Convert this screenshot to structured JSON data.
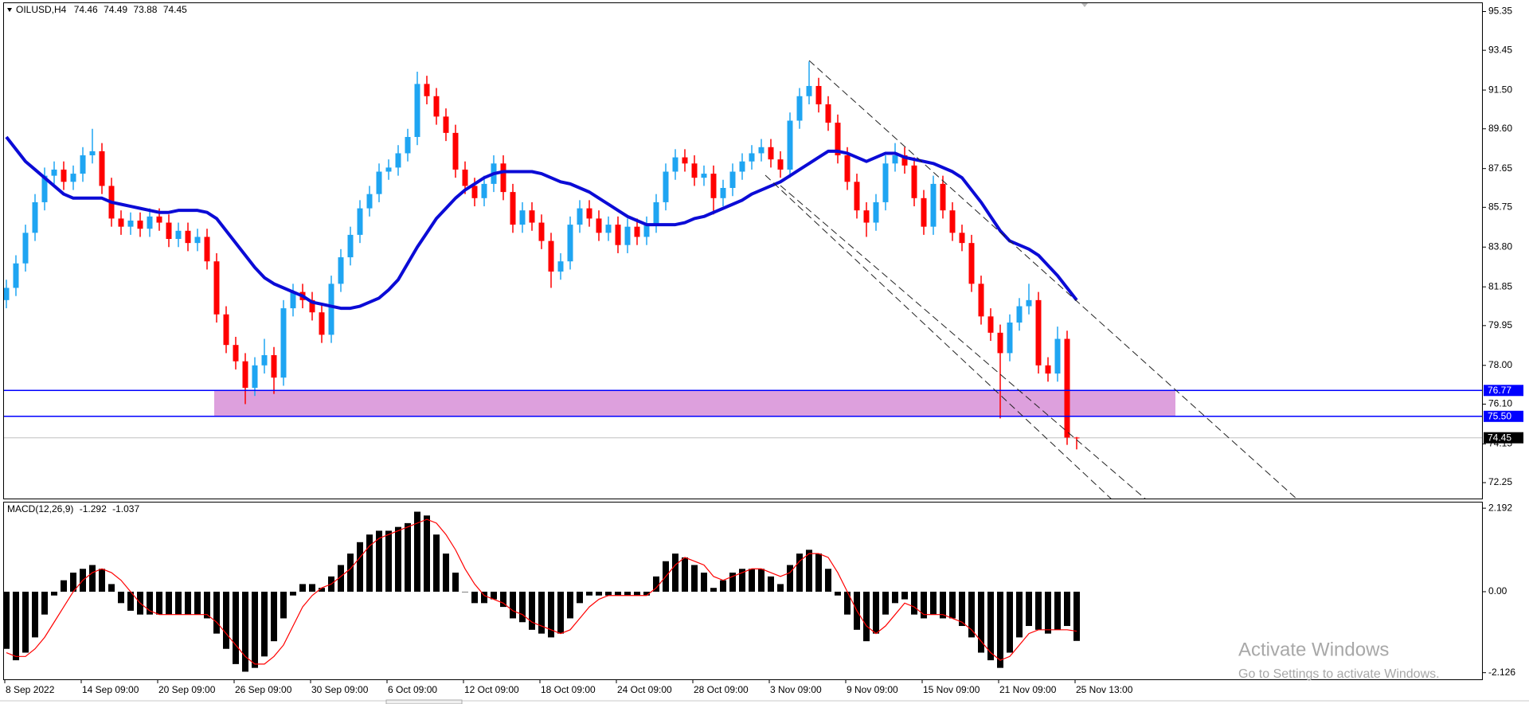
{
  "chart_data": [
    {
      "type": "candlestick",
      "title": "OILUSD,H4",
      "categories": [
        "8 Sep 2022",
        null,
        null,
        null,
        null,
        null,
        null,
        null,
        "14 Sep 09:00",
        null,
        null,
        null,
        null,
        null,
        null,
        null,
        "20 Sep 09:00",
        null,
        null,
        null,
        null,
        null,
        null,
        null,
        "26 Sep 09:00",
        null,
        null,
        null,
        null,
        null,
        null,
        null,
        "30 Sep 09:00",
        null,
        null,
        null,
        null,
        null,
        null,
        null,
        "6 Oct 09:00",
        null,
        null,
        null,
        null,
        null,
        null,
        null,
        "12 Oct 09:00",
        null,
        null,
        null,
        null,
        null,
        null,
        null,
        "18 Oct 09:00",
        null,
        null,
        null,
        null,
        null,
        null,
        null,
        "24 Oct 09:00",
        null,
        null,
        null,
        null,
        null,
        null,
        null,
        "28 Oct 09:00",
        null,
        null,
        null,
        null,
        null,
        null,
        null,
        "3 Nov 09:00",
        null,
        null,
        null,
        null,
        null,
        null,
        null,
        "9 Nov 09:00",
        null,
        null,
        null,
        null,
        null,
        null,
        null,
        "15 Nov 09:00",
        null,
        null,
        null,
        null,
        null,
        null,
        null,
        "21 Nov 09:00",
        null,
        null,
        null,
        null,
        null,
        null,
        null,
        "25 Nov 13:00"
      ],
      "ohlc": [
        [
          81.2,
          82.2,
          80.8,
          81.8
        ],
        [
          81.8,
          83.4,
          81.4,
          83.0
        ],
        [
          83.0,
          84.9,
          82.6,
          84.5
        ],
        [
          84.5,
          86.4,
          84.1,
          86.0
        ],
        [
          86.0,
          87.7,
          85.6,
          87.3
        ],
        [
          87.3,
          88.0,
          86.9,
          87.6
        ],
        [
          87.6,
          88.0,
          86.6,
          87.0
        ],
        [
          87.0,
          87.8,
          86.6,
          87.4
        ],
        [
          87.4,
          88.7,
          87.0,
          88.3
        ],
        [
          88.3,
          89.6,
          87.9,
          88.5
        ],
        [
          88.5,
          88.9,
          86.4,
          86.8
        ],
        [
          86.8,
          87.2,
          84.8,
          85.2
        ],
        [
          85.2,
          85.6,
          84.4,
          84.8
        ],
        [
          84.8,
          85.5,
          84.4,
          85.1
        ],
        [
          85.1,
          85.5,
          84.3,
          84.7
        ],
        [
          84.7,
          85.7,
          84.3,
          85.3
        ],
        [
          85.3,
          85.7,
          84.6,
          85.0
        ],
        [
          85.0,
          85.4,
          83.8,
          84.2
        ],
        [
          84.2,
          85.0,
          83.8,
          84.6
        ],
        [
          84.6,
          85.0,
          83.6,
          84.0
        ],
        [
          84.0,
          84.7,
          83.6,
          84.3
        ],
        [
          84.3,
          84.7,
          82.7,
          83.1
        ],
        [
          83.1,
          83.5,
          80.1,
          80.5
        ],
        [
          80.5,
          80.9,
          78.6,
          79.0
        ],
        [
          79.0,
          79.4,
          77.8,
          78.2
        ],
        [
          78.2,
          78.6,
          76.1,
          76.9
        ],
        [
          76.9,
          78.4,
          76.5,
          78.0
        ],
        [
          78.0,
          79.3,
          77.6,
          78.5
        ],
        [
          78.5,
          78.9,
          76.6,
          77.4
        ],
        [
          77.4,
          81.2,
          77.0,
          80.8
        ],
        [
          80.8,
          82.0,
          80.4,
          81.6
        ],
        [
          81.6,
          82.0,
          80.8,
          81.2
        ],
        [
          81.2,
          81.6,
          80.2,
          80.6
        ],
        [
          80.6,
          81.0,
          79.1,
          79.5
        ],
        [
          79.5,
          82.4,
          79.1,
          82.0
        ],
        [
          82.0,
          83.7,
          81.6,
          83.3
        ],
        [
          83.3,
          84.8,
          82.9,
          84.4
        ],
        [
          84.4,
          86.1,
          84.0,
          85.7
        ],
        [
          85.7,
          86.8,
          85.3,
          86.4
        ],
        [
          86.4,
          87.9,
          86.0,
          87.5
        ],
        [
          87.5,
          88.1,
          87.1,
          87.7
        ],
        [
          87.7,
          88.8,
          87.3,
          88.4
        ],
        [
          88.4,
          89.6,
          88.0,
          89.2
        ],
        [
          89.2,
          92.4,
          88.8,
          91.8
        ],
        [
          91.8,
          92.2,
          90.8,
          91.2
        ],
        [
          91.2,
          91.6,
          89.8,
          90.2
        ],
        [
          90.2,
          90.6,
          89.0,
          89.4
        ],
        [
          89.4,
          89.8,
          87.2,
          87.6
        ],
        [
          87.6,
          88.0,
          86.4,
          86.8
        ],
        [
          86.8,
          87.2,
          85.8,
          86.2
        ],
        [
          86.2,
          87.3,
          85.8,
          86.9
        ],
        [
          86.9,
          88.3,
          86.5,
          87.9
        ],
        [
          87.9,
          88.3,
          86.1,
          86.5
        ],
        [
          86.5,
          86.9,
          84.5,
          84.9
        ],
        [
          84.9,
          86.0,
          84.5,
          85.6
        ],
        [
          85.6,
          86.0,
          84.6,
          85.0
        ],
        [
          85.0,
          85.4,
          83.7,
          84.1
        ],
        [
          84.1,
          84.5,
          81.8,
          82.6
        ],
        [
          82.6,
          83.5,
          82.2,
          83.1
        ],
        [
          83.1,
          85.3,
          82.7,
          84.9
        ],
        [
          84.9,
          86.1,
          84.5,
          85.7
        ],
        [
          85.7,
          86.1,
          84.8,
          85.2
        ],
        [
          85.2,
          85.6,
          84.1,
          84.5
        ],
        [
          84.5,
          85.3,
          84.1,
          84.9
        ],
        [
          84.9,
          85.3,
          83.5,
          83.9
        ],
        [
          83.9,
          85.2,
          83.5,
          84.8
        ],
        [
          84.8,
          85.2,
          83.9,
          84.3
        ],
        [
          84.3,
          85.3,
          83.9,
          84.9
        ],
        [
          84.9,
          86.4,
          84.5,
          86.0
        ],
        [
          86.0,
          87.9,
          85.6,
          87.5
        ],
        [
          87.5,
          88.6,
          87.1,
          88.2
        ],
        [
          88.2,
          88.6,
          87.5,
          87.9
        ],
        [
          87.9,
          88.3,
          86.8,
          87.2
        ],
        [
          87.2,
          87.8,
          86.8,
          87.4
        ],
        [
          87.4,
          87.8,
          85.4,
          86.2
        ],
        [
          86.2,
          87.1,
          85.8,
          86.7
        ],
        [
          86.7,
          87.9,
          86.3,
          87.5
        ],
        [
          87.5,
          88.4,
          87.1,
          88.0
        ],
        [
          88.0,
          88.8,
          87.6,
          88.4
        ],
        [
          88.4,
          89.1,
          88.0,
          88.7
        ],
        [
          88.7,
          89.1,
          87.7,
          88.1
        ],
        [
          88.1,
          88.5,
          87.2,
          87.6
        ],
        [
          87.6,
          90.4,
          87.2,
          90.0
        ],
        [
          90.0,
          91.6,
          89.6,
          91.2
        ],
        [
          91.2,
          92.9,
          90.8,
          91.7
        ],
        [
          91.7,
          92.1,
          90.4,
          90.8
        ],
        [
          90.8,
          91.2,
          89.5,
          89.9
        ],
        [
          89.9,
          90.3,
          87.9,
          88.3
        ],
        [
          88.3,
          88.7,
          86.6,
          87.0
        ],
        [
          87.0,
          87.4,
          85.2,
          85.6
        ],
        [
          85.6,
          86.0,
          84.3,
          85.0
        ],
        [
          85.0,
          86.4,
          84.6,
          86.0
        ],
        [
          86.0,
          88.3,
          85.6,
          87.9
        ],
        [
          87.9,
          88.9,
          87.5,
          88.3
        ],
        [
          88.3,
          88.7,
          87.4,
          87.8
        ],
        [
          87.8,
          88.2,
          85.8,
          86.2
        ],
        [
          86.2,
          86.6,
          84.4,
          84.8
        ],
        [
          84.8,
          87.3,
          84.4,
          86.9
        ],
        [
          86.9,
          87.3,
          85.2,
          85.6
        ],
        [
          85.6,
          86.0,
          84.1,
          84.5
        ],
        [
          84.5,
          84.9,
          83.6,
          84.0
        ],
        [
          84.0,
          84.4,
          81.6,
          82.0
        ],
        [
          82.0,
          82.4,
          80.0,
          80.4
        ],
        [
          80.4,
          80.8,
          79.2,
          79.6
        ],
        [
          79.6,
          80.0,
          75.4,
          78.6
        ],
        [
          78.6,
          80.5,
          78.2,
          80.1
        ],
        [
          80.1,
          81.3,
          79.7,
          80.9
        ],
        [
          80.9,
          82.0,
          80.5,
          81.2
        ],
        [
          81.2,
          81.6,
          77.6,
          78.0
        ],
        [
          78.0,
          78.4,
          77.2,
          77.6
        ],
        [
          77.6,
          79.9,
          77.2,
          79.3
        ],
        [
          79.3,
          79.7,
          74.1,
          74.46
        ],
        [
          74.46,
          74.49,
          73.88,
          74.45
        ]
      ],
      "up_color": "#1fa5f2",
      "down_color": "#ff0000",
      "ma": {
        "color": "#0b0bd6",
        "values": [
          89.2,
          88.6,
          88.0,
          87.6,
          87.2,
          86.8,
          86.4,
          86.2,
          86.2,
          86.2,
          86.2,
          86.0,
          85.9,
          85.8,
          85.7,
          85.6,
          85.5,
          85.5,
          85.6,
          85.6,
          85.6,
          85.5,
          85.2,
          84.6,
          84.0,
          83.4,
          82.8,
          82.3,
          82.0,
          81.8,
          81.6,
          81.4,
          81.1,
          81.0,
          80.9,
          80.8,
          80.8,
          80.9,
          81.1,
          81.3,
          81.7,
          82.2,
          83.0,
          83.8,
          84.5,
          85.2,
          85.7,
          86.2,
          86.6,
          86.9,
          87.2,
          87.4,
          87.5,
          87.5,
          87.5,
          87.5,
          87.4,
          87.2,
          87.0,
          86.9,
          86.7,
          86.5,
          86.2,
          85.9,
          85.6,
          85.3,
          85.1,
          84.9,
          84.9,
          84.9,
          84.9,
          85.0,
          85.2,
          85.3,
          85.5,
          85.7,
          85.9,
          86.1,
          86.4,
          86.6,
          86.8,
          87.0,
          87.3,
          87.6,
          87.9,
          88.2,
          88.5,
          88.5,
          88.4,
          88.2,
          88.0,
          88.2,
          88.4,
          88.4,
          88.2,
          88.1,
          88.0,
          87.9,
          87.7,
          87.5,
          87.2,
          86.6,
          86.0,
          85.3,
          84.6,
          84.1,
          83.9,
          83.7,
          83.4,
          82.9,
          82.4,
          81.8,
          81.2
        ]
      },
      "levels": [
        76.77,
        {
          "value": 75.5,
          "label": "75.50"
        }
      ],
      "level_color": "#0000ff",
      "zone_color": "#dda0dd",
      "ylim": [
        71.47,
        95.76
      ],
      "yticks": [
        95.35,
        93.45,
        {
          "value": 91.5,
          "label": "91.50"
        },
        {
          "value": 89.6,
          "label": "89.60"
        },
        87.65,
        85.75,
        {
          "value": 83.8,
          "label": "83.80"
        },
        81.85,
        79.95,
        {
          "value": 78,
          "label": "78.00"
        },
        {
          "value": 76.1,
          "label": "76.10"
        },
        74.15,
        72.25
      ]
    },
    {
      "type": "macd",
      "title": "MACD(12,26,9)",
      "color": "#000000",
      "values": [
        -1.5,
        -1.8,
        -1.6,
        -1.2,
        -0.6,
        -0.1,
        0.3,
        0.5,
        0.6,
        0.7,
        0.6,
        0.2,
        -0.3,
        -0.5,
        -0.6,
        -0.6,
        -0.6,
        -0.6,
        -0.6,
        -0.6,
        -0.6,
        -0.7,
        -1.1,
        -1.5,
        -1.9,
        -2.1,
        -2.0,
        -1.7,
        -1.3,
        -0.7,
        -0.1,
        0.2,
        0.2,
        0.1,
        0.4,
        0.7,
        1.0,
        1.3,
        1.5,
        1.6,
        1.6,
        1.7,
        1.8,
        2.1,
        2.0,
        1.5,
        1.0,
        0.5,
        0.0,
        -0.3,
        -0.3,
        -0.2,
        -0.4,
        -0.7,
        -0.8,
        -1.0,
        -1.1,
        -1.2,
        -1.1,
        -0.7,
        -0.3,
        -0.1,
        -0.1,
        -0.1,
        -0.1,
        -0.1,
        -0.1,
        -0.1,
        0.4,
        0.8,
        1.0,
        0.9,
        0.7,
        0.5,
        0.1,
        0.3,
        0.5,
        0.6,
        0.6,
        0.6,
        0.4,
        0.2,
        0.7,
        1.0,
        1.1,
        1.0,
        0.6,
        -0.1,
        -0.6,
        -1.0,
        -1.3,
        -1.1,
        -0.6,
        -0.3,
        -0.2,
        -0.6,
        -0.7,
        -0.6,
        -0.7,
        -0.7,
        -0.9,
        -1.2,
        -1.6,
        -1.8,
        -2.0,
        -1.6,
        -1.2,
        -0.9,
        -1.0,
        -1.1,
        -1.0,
        -0.9,
        -1.292
      ],
      "signal": {
        "color": "#ff0000",
        "values": [
          -1.6,
          -1.7,
          -1.7,
          -1.5,
          -1.2,
          -0.8,
          -0.4,
          0.0,
          0.3,
          0.5,
          0.6,
          0.5,
          0.3,
          0.0,
          -0.3,
          -0.5,
          -0.6,
          -0.6,
          -0.6,
          -0.6,
          -0.6,
          -0.6,
          -0.8,
          -1.1,
          -1.4,
          -1.7,
          -1.9,
          -1.9,
          -1.7,
          -1.4,
          -0.9,
          -0.4,
          -0.1,
          0.1,
          0.2,
          0.4,
          0.6,
          0.9,
          1.2,
          1.4,
          1.5,
          1.6,
          1.7,
          1.8,
          1.9,
          1.8,
          1.5,
          1.1,
          0.6,
          0.2,
          -0.1,
          -0.2,
          -0.3,
          -0.5,
          -0.6,
          -0.8,
          -0.9,
          -1.0,
          -1.1,
          -1.0,
          -0.7,
          -0.4,
          -0.2,
          -0.1,
          -0.1,
          -0.1,
          -0.1,
          -0.1,
          0.1,
          0.4,
          0.7,
          0.9,
          0.8,
          0.7,
          0.4,
          0.3,
          0.4,
          0.5,
          0.6,
          0.6,
          0.5,
          0.4,
          0.5,
          0.8,
          1.0,
          1.0,
          0.9,
          0.5,
          0.0,
          -0.5,
          -0.9,
          -1.1,
          -0.9,
          -0.6,
          -0.3,
          -0.4,
          -0.6,
          -0.6,
          -0.6,
          -0.7,
          -0.8,
          -1.0,
          -1.3,
          -1.6,
          -1.8,
          -1.7,
          -1.4,
          -1.1,
          -1.0,
          -1.0,
          -1.0,
          -1.0,
          -1.037
        ]
      },
      "ylim": [
        -2.3,
        2.32
      ],
      "yticks": [
        2.192,
        {
          "value": 0,
          "label": "0.00"
        },
        -2.126
      ]
    }
  ],
  "watermark": {
    "title": "Activate Windows",
    "subtitle": "Go to Settings to activate Windows."
  }
}
